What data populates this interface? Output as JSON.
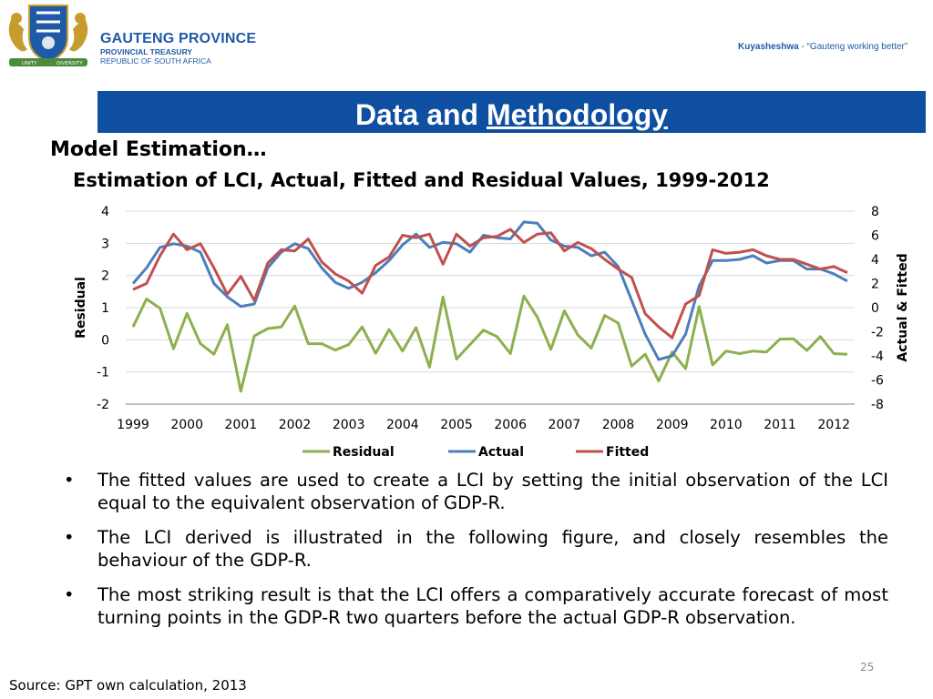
{
  "header": {
    "org_name": "GAUTENG PROVINCE",
    "org_sub1": "PROVINCIAL TREASURY",
    "org_sub2": "REPUBLIC OF SOUTH AFRICA",
    "slogan_brand": "Kuyasheshwa",
    "slogan_text": " - “Gauteng working better”",
    "crest_motto_left": "UNITY",
    "crest_motto_right": "DIVERSITY"
  },
  "title": {
    "part1": "Data and ",
    "part2": "Methodology"
  },
  "sub_heading": "Model Estimation…",
  "colors": {
    "residual": "#8db04e",
    "actual": "#4d7ebc",
    "fitted": "#c0504d",
    "title_bar": "#0f4fa1"
  },
  "chart_data": {
    "type": "line",
    "title": "Estimation of LCI, Actual, Fitted and Residual Values, 1999-2012",
    "ylabel_left": "Residual",
    "ylabel_right": "Actual & Fitted",
    "x_ticks": [
      "1999",
      "2000",
      "2001",
      "2002",
      "2003",
      "2004",
      "2005",
      "2006",
      "2007",
      "2008",
      "2009",
      "2010",
      "2011",
      "2012"
    ],
    "y_left_ticks": [
      "4",
      "3",
      "2",
      "1",
      "0",
      "-1",
      "-2"
    ],
    "y_right_ticks": [
      "8",
      "6",
      "4",
      "2",
      "0",
      "-2",
      "-4",
      "-6",
      "-8"
    ],
    "ylim_left": [
      -2,
      4
    ],
    "ylim_right": [
      -8,
      8
    ],
    "legend": [
      "Residual",
      "Actual",
      "Fitted"
    ],
    "legend_position": "bottom",
    "series": [
      {
        "name": "Residual",
        "axis": "left",
        "values": [
          0.4,
          1.27,
          0.98,
          -0.28,
          0.82,
          -0.12,
          -0.45,
          0.47,
          -1.6,
          0.12,
          0.35,
          0.4,
          1.05,
          -0.12,
          -0.12,
          -0.32,
          -0.15,
          0.4,
          -0.42,
          0.32,
          -0.35,
          0.38,
          -0.85,
          1.33,
          -0.6,
          -0.15,
          0.3,
          0.1,
          -0.43,
          1.36,
          0.7,
          -0.3,
          0.9,
          0.15,
          -0.26,
          0.76,
          0.52,
          -0.82,
          -0.45,
          -1.28,
          -0.38,
          -0.9,
          1.03,
          -0.78,
          -0.35,
          -0.43,
          -0.35,
          -0.38,
          0.02,
          0.03,
          -0.33,
          0.1,
          -0.43,
          -0.45
        ]
      },
      {
        "name": "Actual",
        "axis": "right",
        "values": [
          2.0,
          3.3,
          5.0,
          5.3,
          5.1,
          4.6,
          2.0,
          0.9,
          0.1,
          0.3,
          3.3,
          4.6,
          5.3,
          4.9,
          3.3,
          2.1,
          1.6,
          2.1,
          2.9,
          3.9,
          5.2,
          6.1,
          5.0,
          5.4,
          5.3,
          4.6,
          6.0,
          5.8,
          5.7,
          7.1,
          7.0,
          5.6,
          5.1,
          5.0,
          4.3,
          4.6,
          3.4,
          0.6,
          -2.2,
          -4.3,
          -4.0,
          -2.2,
          1.8,
          3.9,
          3.9,
          4.0,
          4.3,
          3.7,
          3.9,
          3.9,
          3.2,
          3.2,
          2.8,
          2.2
        ]
      },
      {
        "name": "Fitted",
        "axis": "right",
        "values": [
          1.5,
          2.0,
          4.3,
          6.1,
          4.8,
          5.3,
          3.3,
          1.1,
          2.6,
          0.6,
          3.7,
          4.8,
          4.7,
          5.7,
          3.8,
          2.8,
          2.2,
          1.2,
          3.5,
          4.2,
          6.0,
          5.8,
          6.1,
          3.6,
          6.1,
          5.1,
          5.8,
          5.9,
          6.5,
          5.4,
          6.1,
          6.2,
          4.7,
          5.4,
          4.9,
          4.0,
          3.2,
          2.5,
          -0.5,
          -1.6,
          -2.5,
          0.3,
          1.0,
          4.8,
          4.5,
          4.6,
          4.8,
          4.3,
          4.0,
          4.0,
          3.6,
          3.2,
          3.4,
          2.9
        ]
      }
    ]
  },
  "bullets": [
    "The fitted values are used to create a LCI by setting the initial observation of the LCI equal to the equivalent observation of GDP-R.",
    "The LCI derived is illustrated in the following figure, and closely resembles the behaviour of the GDP-R.",
    "The most striking result is that the LCI offers a comparatively accurate forecast of most turning points in the GDP-R two quarters before the actual GDP-R observation."
  ],
  "bullet_symbol": "•",
  "page_number": "25",
  "source": "Source: GPT own calculation, 2013"
}
